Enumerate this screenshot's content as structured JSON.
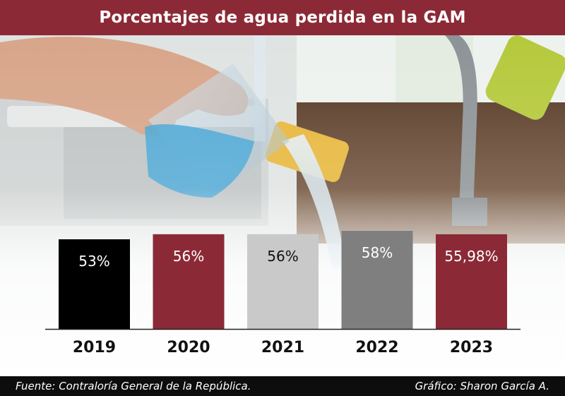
{
  "title": "Porcentajes de agua perdida en la GAM",
  "footer": {
    "source": "Fuente: Contraloría General de la República.",
    "credit": "Gráfico: Sharon García A."
  },
  "colors": {
    "title_bg": "#8b2a36",
    "footer_bg": "#0d0d0d"
  },
  "chart_data": {
    "type": "bar",
    "categories": [
      "2019",
      "2020",
      "2021",
      "2022",
      "2023"
    ],
    "values": [
      53,
      56,
      56,
      58,
      55.98
    ],
    "labels": [
      "53%",
      "56%",
      "56%",
      "58%",
      "55,98%"
    ],
    "colors": [
      "#000000",
      "#8b2a36",
      "#c9c9c9",
      "#7f7f7f",
      "#8b2a36"
    ],
    "label_colors": [
      "#ffffff",
      "#ffffff",
      "#111111",
      "#ffffff",
      "#ffffff"
    ],
    "title": "Porcentajes de agua perdida en la GAM",
    "xlabel": "",
    "ylabel": "",
    "grid": false
  }
}
